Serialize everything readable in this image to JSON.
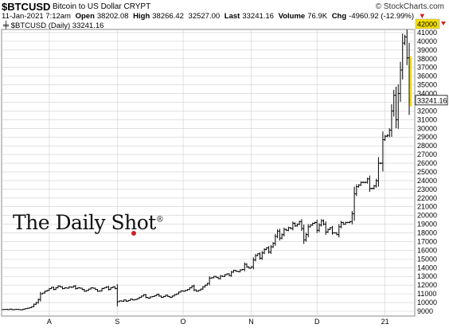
{
  "header": {
    "symbol": "$BTCUSD",
    "description": "Bitcoin to US Dollar",
    "exchange": "CRYPT",
    "watermark": "© StockCharts.com",
    "timestamp": "11-Jan-2021 7:12am",
    "open_label": "Open",
    "open": "38202.08",
    "high_label": "High",
    "high": "38266.42",
    "low": "32527.00",
    "last_label": "Last",
    "last": "33241.16",
    "volume_label": "Volume",
    "volume": "76.9K",
    "chg_label": "Chg",
    "chg": "-4960.92 (-12.99%)",
    "legend": "$BTCUSD (Daily) 33241.16"
  },
  "logo": {
    "text": "The Daily Shot",
    "mark": "®"
  },
  "colors": {
    "bars": "#000000",
    "up_arrow": "#d32020",
    "last_bar_highlight": "#f5e000",
    "grid": "#cfcfcf"
  },
  "chart_data": {
    "type": "ohlc",
    "title": "$BTCUSD (Daily) 33241.16",
    "xlabel": "",
    "ylabel": "",
    "ylim": [
      9000,
      42000
    ],
    "y_ticks": [
      9000,
      10000,
      11000,
      12000,
      13000,
      14000,
      15000,
      16000,
      17000,
      18000,
      19000,
      20000,
      21000,
      22000,
      23000,
      24000,
      25000,
      26000,
      27000,
      28000,
      29000,
      30000,
      31000,
      32000,
      33000,
      34000,
      35000,
      36000,
      37000,
      38000,
      39000,
      40000,
      41000,
      42000
    ],
    "y_tick_labels": [
      "9000",
      "10000",
      "11000",
      "12000",
      "13000",
      "14000",
      "15000",
      "16000",
      "17000",
      "18000",
      "19000",
      "20000",
      "21000",
      "22000",
      "23000",
      "24000",
      "25000",
      "26000",
      "27000",
      "28000",
      "29000",
      "30000",
      "31000",
      "32000",
      "33000",
      "34000",
      "35000",
      "36000",
      "37000",
      "38000",
      "39000",
      "40000",
      "41000",
      "42000"
    ],
    "x_tick_labels": [
      "A",
      "S",
      "O",
      "N",
      "D",
      "21"
    ],
    "x_tick_day_index": [
      21,
      52,
      82,
      113,
      143,
      174
    ],
    "grid": true,
    "highlight_label": "42000",
    "last_label": "33241.16",
    "series": [
      {
        "close": [
          9200,
          9220,
          9190,
          9250,
          9180,
          9210,
          9230,
          9200,
          9170,
          9240,
          9300,
          9350,
          9420,
          9550,
          9800,
          10000,
          10350,
          11000,
          11100,
          11300,
          11400,
          11600,
          11750,
          11500,
          11700,
          11900,
          11800,
          11600,
          11700,
          11650,
          11800,
          11750,
          11900,
          11600,
          11700,
          11650,
          11500,
          11300,
          11400,
          11550,
          11700,
          11650,
          11500,
          11300,
          11350,
          11600,
          11700,
          11800,
          11500,
          11700,
          11800,
          11600,
          10100,
          10200,
          10150,
          10300,
          10150,
          10250,
          10400,
          10300,
          10350,
          10450,
          10600,
          10750,
          10900,
          10600,
          10500,
          10650,
          10700,
          10800,
          10950,
          10750,
          10600,
          10700,
          10850,
          10700,
          10600,
          10750,
          10900,
          11000,
          11200,
          11350,
          11300,
          11400,
          11500,
          11700,
          11900,
          11450,
          11300,
          11400,
          11550,
          11800,
          12000,
          12200,
          12800,
          12850,
          13000,
          12900,
          12750,
          13050,
          13000,
          13200,
          13300,
          13100,
          13500,
          13700,
          13600,
          13550,
          13750,
          13800,
          14400,
          14100,
          13950,
          14100,
          14900,
          15400,
          15600,
          15100,
          15700,
          16100,
          16300,
          15800,
          16400,
          16800,
          17600,
          18200,
          17400,
          17800,
          18400,
          18300,
          18600,
          18500,
          19100,
          18800,
          19000,
          19300,
          18500,
          17200,
          17800,
          18700,
          18900,
          19100,
          19200,
          18300,
          18900,
          19400,
          19000,
          18100,
          18400,
          18600,
          18000,
          18000,
          17800,
          18700,
          19200,
          19000,
          19200,
          19200,
          19300,
          20200,
          22500,
          23300,
          23500,
          23800,
          23800,
          23800,
          24200,
          23100,
          23100,
          23400,
          24000,
          26000,
          26000,
          28700,
          29100,
          29200,
          29800,
          32000,
          33800,
          31000,
          34000,
          36700,
          39800,
          40500,
          38100,
          33241.16
        ]
      }
    ]
  }
}
